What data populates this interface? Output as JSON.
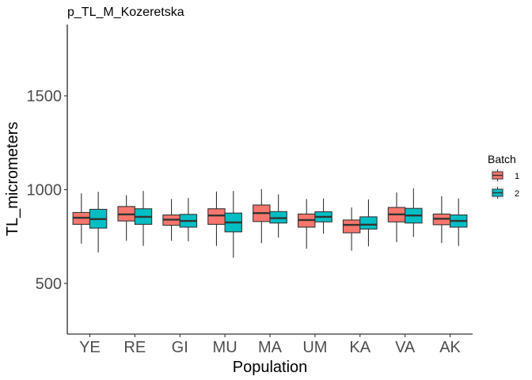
{
  "chart_data": {
    "type": "boxplot",
    "title": "p_TL_M_Kozeretska",
    "xlabel": "Population",
    "ylabel": "TL_micrometers",
    "ylim": [
      230,
      1880
    ],
    "yticks": [
      500,
      1000,
      1500
    ],
    "grid": false,
    "categories": [
      "YE",
      "RE",
      "GI",
      "MU",
      "MA",
      "UM",
      "KA",
      "VA",
      "AK"
    ],
    "legend": {
      "title": "Batch",
      "position": "right"
    },
    "series": [
      {
        "name": "1",
        "color": "#F8766D",
        "boxes": [
          {
            "min": 712,
            "q1": 815,
            "median": 850,
            "q3": 878,
            "max": 980
          },
          {
            "min": 728,
            "q1": 833,
            "median": 868,
            "q3": 910,
            "max": 970
          },
          {
            "min": 728,
            "q1": 810,
            "median": 840,
            "q3": 865,
            "max": 950
          },
          {
            "min": 700,
            "q1": 815,
            "median": 862,
            "q3": 898,
            "max": 990
          },
          {
            "min": 715,
            "q1": 830,
            "median": 875,
            "q3": 918,
            "max": 1003
          },
          {
            "min": 685,
            "q1": 800,
            "median": 838,
            "q3": 870,
            "max": 950
          },
          {
            "min": 675,
            "q1": 770,
            "median": 812,
            "q3": 838,
            "max": 905
          },
          {
            "min": 720,
            "q1": 828,
            "median": 868,
            "q3": 905,
            "max": 985
          },
          {
            "min": 715,
            "q1": 813,
            "median": 845,
            "q3": 870,
            "max": 965
          }
        ]
      },
      {
        "name": "2",
        "color": "#00BFC4",
        "boxes": [
          {
            "min": 665,
            "q1": 795,
            "median": 843,
            "q3": 895,
            "max": 988
          },
          {
            "min": 700,
            "q1": 815,
            "median": 855,
            "q3": 898,
            "max": 993
          },
          {
            "min": 725,
            "q1": 800,
            "median": 833,
            "q3": 868,
            "max": 955
          },
          {
            "min": 637,
            "q1": 775,
            "median": 825,
            "q3": 875,
            "max": 993
          },
          {
            "min": 745,
            "q1": 822,
            "median": 848,
            "q3": 883,
            "max": 975
          },
          {
            "min": 765,
            "q1": 828,
            "median": 855,
            "q3": 882,
            "max": 953
          },
          {
            "min": 698,
            "q1": 790,
            "median": 813,
            "q3": 855,
            "max": 948
          },
          {
            "min": 748,
            "q1": 822,
            "median": 862,
            "q3": 900,
            "max": 1007
          },
          {
            "min": 700,
            "q1": 800,
            "median": 833,
            "q3": 865,
            "max": 953
          }
        ]
      }
    ]
  }
}
